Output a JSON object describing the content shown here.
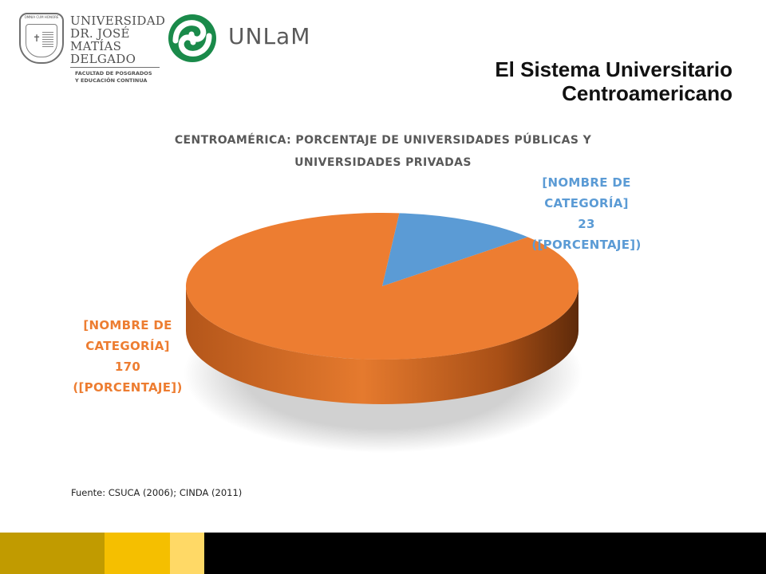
{
  "header": {
    "logo_left": {
      "motto": "OMNIA CUM HONORE",
      "line1": "UNIVERSIDAD DR. JOSÉ",
      "line2": "MATÍAS DELGADO",
      "line3": "FACULTAD DE POSGRADOS",
      "line4": "Y EDUCACIÓN CONTINUA"
    },
    "logo_right": {
      "text": "UNLaM"
    },
    "title_line1": "El Sistema Universitario",
    "title_line2": "Centroamericano"
  },
  "chart_data": {
    "type": "pie",
    "style": "3d",
    "title_line1": "CENTROAMÉRICA: PORCENTAJE DE UNIVERSIDADES PÚBLICAS Y",
    "title_line2": "UNIVERSIDADES PRIVADAS",
    "slices": [
      {
        "label_line1": "[NOMBRE DE",
        "label_line2": "CATEGORÍA]",
        "value": 23,
        "percent_text": "([PORCENTAJE])",
        "color": "#5b9bd5"
      },
      {
        "label_line1": "[NOMBRE DE",
        "label_line2": "CATEGORÍA]",
        "value": 170,
        "percent_text": "([PORCENTAJE])",
        "color": "#ed7d31"
      }
    ],
    "label_color": "#5b9bd5",
    "label_color_second": "#ed7d31"
  },
  "footer": {
    "source": "Fuente: CSUCA (2006); CINDA (2011)",
    "bands": [
      "#c19b00",
      "#f5bf00",
      "#ffd966",
      "#000000"
    ]
  }
}
